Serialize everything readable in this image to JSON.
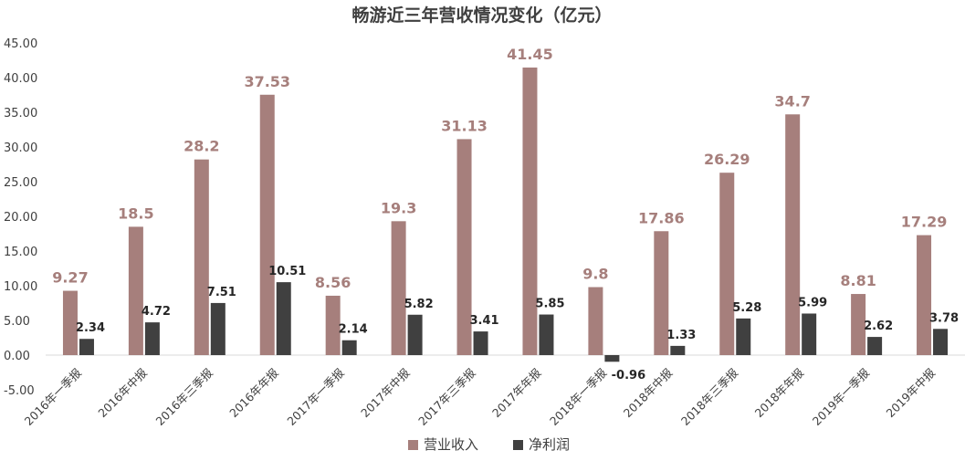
{
  "chart_data": {
    "type": "bar",
    "title": "畅游近三年营收情况变化（亿元）",
    "categories": [
      "2016年一季报",
      "2016年中报",
      "2016年三季报",
      "2016年年报",
      "2017年一季报",
      "2017年中报",
      "2017年三季报",
      "2017年年报",
      "2018年一季报",
      "2018年中报",
      "2018年三季报",
      "2018年年报",
      "2019年一季报",
      "2019年中报"
    ],
    "series": [
      {
        "name": "营业收入",
        "color": "#a67f7c",
        "values": [
          9.27,
          18.5,
          28.2,
          37.53,
          8.56,
          19.3,
          31.13,
          41.45,
          9.8,
          17.86,
          26.29,
          34.7,
          8.81,
          17.29
        ],
        "labels": [
          "9.27",
          "18.5",
          "28.2",
          "37.53",
          "8.56",
          "19.3",
          "31.13",
          "41.45",
          "9.8",
          "17.86",
          "26.29",
          "34.7",
          "8.81",
          "17.29"
        ]
      },
      {
        "name": "净利润",
        "color": "#404040",
        "values": [
          2.34,
          4.72,
          7.51,
          10.51,
          2.14,
          5.82,
          3.41,
          5.85,
          -0.96,
          1.33,
          5.28,
          5.99,
          2.62,
          3.78
        ],
        "labels": [
          "2.34",
          "4.72",
          "7.51",
          "10.51",
          "2.14",
          "5.82",
          "3.41",
          "5.85",
          "-0.96",
          "1.33",
          "5.28",
          "5.99",
          "2.62",
          "3.78"
        ]
      }
    ],
    "ylim": [
      -5,
      45
    ],
    "yticks": [
      "-5.00",
      "0.00",
      "5.00",
      "10.00",
      "15.00",
      "20.00",
      "25.00",
      "30.00",
      "35.00",
      "40.00",
      "45.00"
    ],
    "grid": false,
    "legend": "bottom",
    "xlabel": "",
    "ylabel": ""
  }
}
